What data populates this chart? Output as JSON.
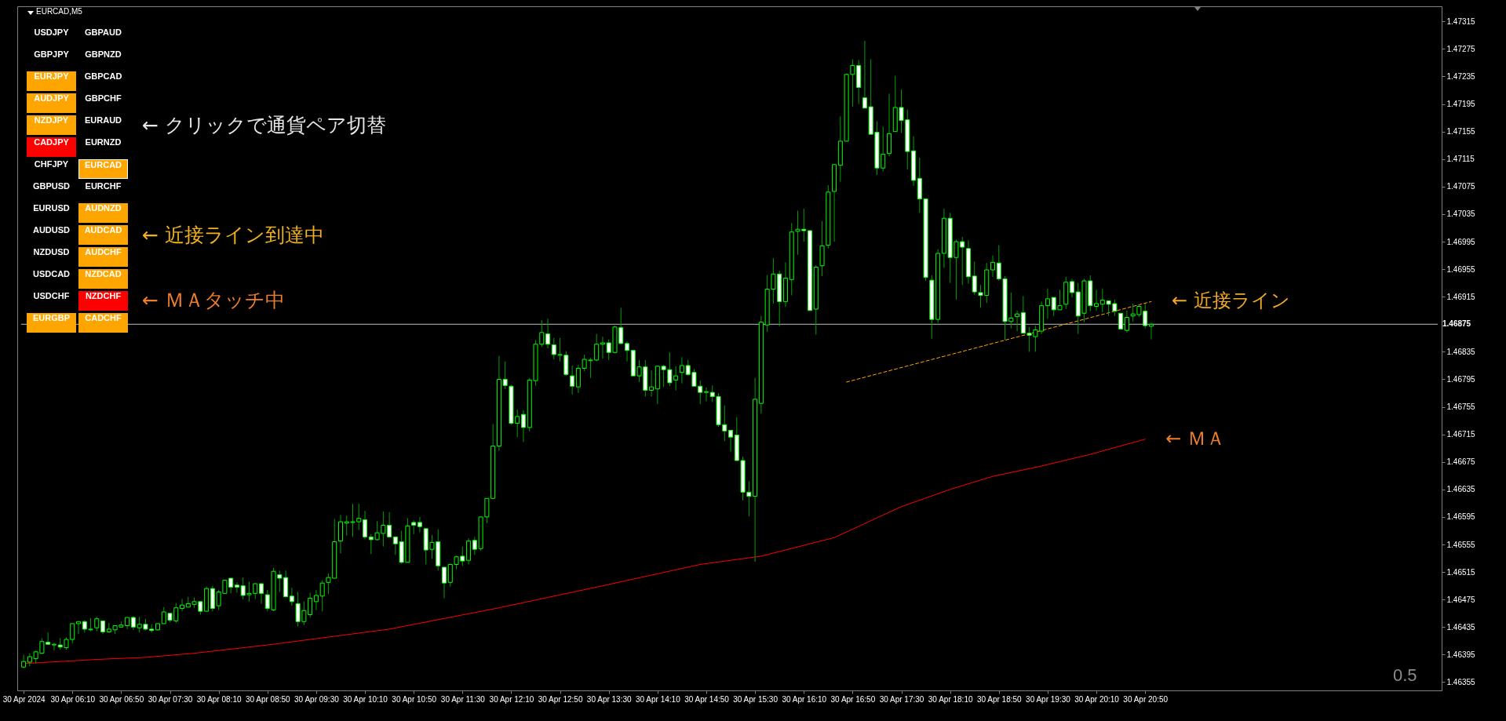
{
  "chart_data": {
    "type": "candlestick",
    "title": "EURCAD,M5",
    "x": [
      "2024-04-30T05:30",
      "2024-04-30T05:35",
      "2024-04-30T05:40",
      "2024-04-30T05:45",
      "2024-04-30T05:50",
      "2024-04-30T05:55",
      "2024-04-30T06:00",
      "2024-04-30T06:05",
      "2024-04-30T06:10",
      "2024-04-30T06:15",
      "2024-04-30T06:20",
      "2024-04-30T06:25",
      "2024-04-30T06:30",
      "2024-04-30T06:35",
      "2024-04-30T06:40",
      "2024-04-30T06:45",
      "2024-04-30T06:50",
      "2024-04-30T06:55",
      "2024-04-30T07:00",
      "2024-04-30T07:05",
      "2024-04-30T07:10",
      "2024-04-30T07:15",
      "2024-04-30T07:20",
      "2024-04-30T07:25",
      "2024-04-30T07:30",
      "2024-04-30T07:35",
      "2024-04-30T07:40",
      "2024-04-30T07:45",
      "2024-04-30T07:50",
      "2024-04-30T07:55",
      "2024-04-30T08:00",
      "2024-04-30T08:05",
      "2024-04-30T08:10",
      "2024-04-30T08:15",
      "2024-04-30T08:20",
      "2024-04-30T08:25",
      "2024-04-30T08:30",
      "2024-04-30T08:35",
      "2024-04-30T08:40",
      "2024-04-30T08:45",
      "2024-04-30T08:50",
      "2024-04-30T08:55",
      "2024-04-30T09:00",
      "2024-04-30T09:05",
      "2024-04-30T09:10",
      "2024-04-30T09:15",
      "2024-04-30T09:20",
      "2024-04-30T09:25",
      "2024-04-30T09:30",
      "2024-04-30T09:35",
      "2024-04-30T09:40",
      "2024-04-30T09:45",
      "2024-04-30T09:50",
      "2024-04-30T09:55",
      "2024-04-30T10:00",
      "2024-04-30T10:05",
      "2024-04-30T10:10",
      "2024-04-30T10:15",
      "2024-04-30T10:20",
      "2024-04-30T10:25",
      "2024-04-30T10:30",
      "2024-04-30T10:35",
      "2024-04-30T10:40",
      "2024-04-30T10:45",
      "2024-04-30T10:50",
      "2024-04-30T10:55",
      "2024-04-30T11:00",
      "2024-04-30T11:05",
      "2024-04-30T11:10",
      "2024-04-30T11:15",
      "2024-04-30T11:20",
      "2024-04-30T11:25",
      "2024-04-30T11:30",
      "2024-04-30T11:35",
      "2024-04-30T11:40",
      "2024-04-30T11:45",
      "2024-04-30T11:50",
      "2024-04-30T11:55",
      "2024-04-30T12:00",
      "2024-04-30T12:05",
      "2024-04-30T12:10",
      "2024-04-30T12:15",
      "2024-04-30T12:20",
      "2024-04-30T12:25",
      "2024-04-30T12:30",
      "2024-04-30T12:35",
      "2024-04-30T12:40",
      "2024-04-30T12:45",
      "2024-04-30T12:50",
      "2024-04-30T12:55",
      "2024-04-30T13:00",
      "2024-04-30T13:05",
      "2024-04-30T13:10",
      "2024-04-30T13:15",
      "2024-04-30T13:20",
      "2024-04-30T13:25",
      "2024-04-30T13:30",
      "2024-04-30T13:35",
      "2024-04-30T13:40",
      "2024-04-30T13:45",
      "2024-04-30T13:50",
      "2024-04-30T13:55",
      "2024-04-30T14:00",
      "2024-04-30T14:05",
      "2024-04-30T14:10",
      "2024-04-30T14:15",
      "2024-04-30T14:20",
      "2024-04-30T14:25",
      "2024-04-30T14:30",
      "2024-04-30T14:35",
      "2024-04-30T14:40",
      "2024-04-30T14:45",
      "2024-04-30T14:50",
      "2024-04-30T14:55",
      "2024-04-30T15:00",
      "2024-04-30T15:05",
      "2024-04-30T15:10",
      "2024-04-30T15:15",
      "2024-04-30T15:20",
      "2024-04-30T15:25",
      "2024-04-30T15:30",
      "2024-04-30T15:35",
      "2024-04-30T15:40",
      "2024-04-30T15:45",
      "2024-04-30T15:50",
      "2024-04-30T15:55",
      "2024-04-30T16:00",
      "2024-04-30T16:05",
      "2024-04-30T16:10",
      "2024-04-30T16:15",
      "2024-04-30T16:20",
      "2024-04-30T16:25",
      "2024-04-30T16:30",
      "2024-04-30T16:35",
      "2024-04-30T16:40",
      "2024-04-30T16:45",
      "2024-04-30T16:50",
      "2024-04-30T16:55",
      "2024-04-30T17:00",
      "2024-04-30T17:05",
      "2024-04-30T17:10",
      "2024-04-30T17:15",
      "2024-04-30T17:20",
      "2024-04-30T17:25",
      "2024-04-30T17:30",
      "2024-04-30T17:35",
      "2024-04-30T17:40",
      "2024-04-30T17:45",
      "2024-04-30T17:50",
      "2024-04-30T17:55",
      "2024-04-30T18:00",
      "2024-04-30T18:05",
      "2024-04-30T18:10",
      "2024-04-30T18:15",
      "2024-04-30T18:20",
      "2024-04-30T18:25",
      "2024-04-30T18:30",
      "2024-04-30T18:35",
      "2024-04-30T18:40",
      "2024-04-30T18:45",
      "2024-04-30T18:50",
      "2024-04-30T18:55",
      "2024-04-30T19:00",
      "2024-04-30T19:05",
      "2024-04-30T19:10",
      "2024-04-30T19:15",
      "2024-04-30T19:20",
      "2024-04-30T19:25",
      "2024-04-30T19:30",
      "2024-04-30T19:35",
      "2024-04-30T19:40",
      "2024-04-30T19:45",
      "2024-04-30T19:50",
      "2024-04-30T19:55",
      "2024-04-30T20:00",
      "2024-04-30T20:05",
      "2024-04-30T20:10",
      "2024-04-30T20:15",
      "2024-04-30T20:20",
      "2024-04-30T20:25",
      "2024-04-30T20:30",
      "2024-04-30T20:35",
      "2024-04-30T20:40",
      "2024-04-30T20:45",
      "2024-04-30T20:50",
      "2024-04-30T20:55"
    ],
    "ohlc": [
      [
        1.46377,
        1.46395,
        1.46375,
        1.46385
      ],
      [
        1.46384,
        1.46397,
        1.46378,
        1.46392
      ],
      [
        1.46389,
        1.46401,
        1.46382,
        1.46399
      ],
      [
        1.46397,
        1.46419,
        1.46396,
        1.46414
      ],
      [
        1.46413,
        1.46427,
        1.46409,
        1.4641
      ],
      [
        1.46409,
        1.46412,
        1.46401,
        1.4641
      ],
      [
        1.46409,
        1.46419,
        1.46402,
        1.46406
      ],
      [
        1.46405,
        1.4642,
        1.46402,
        1.46417
      ],
      [
        1.46417,
        1.4644,
        1.46411,
        1.4644
      ],
      [
        1.4644,
        1.46443,
        1.46425,
        1.46443
      ],
      [
        1.46443,
        1.46445,
        1.46427,
        1.46432
      ],
      [
        1.46431,
        1.46448,
        1.46429,
        1.46432
      ],
      [
        1.46434,
        1.4645,
        1.46429,
        1.46447
      ],
      [
        1.46444,
        1.46444,
        1.46425,
        1.46428
      ],
      [
        1.46428,
        1.46441,
        1.46426,
        1.46432
      ],
      [
        1.46431,
        1.46437,
        1.46425,
        1.46437
      ],
      [
        1.46435,
        1.46443,
        1.46434,
        1.46438
      ],
      [
        1.46437,
        1.46449,
        1.46432,
        1.46449
      ],
      [
        1.46449,
        1.46451,
        1.46431,
        1.46435
      ],
      [
        1.46434,
        1.4645,
        1.46427,
        1.46439
      ],
      [
        1.46439,
        1.46447,
        1.4643,
        1.46432
      ],
      [
        1.46432,
        1.46439,
        1.46427,
        1.4643
      ],
      [
        1.46431,
        1.4644,
        1.4643,
        1.4644
      ],
      [
        1.4644,
        1.46464,
        1.4644,
        1.46457
      ],
      [
        1.46455,
        1.46455,
        1.46442,
        1.46445
      ],
      [
        1.46444,
        1.4647,
        1.46441,
        1.46463
      ],
      [
        1.46462,
        1.46476,
        1.46458,
        1.46467
      ],
      [
        1.46464,
        1.46479,
        1.46464,
        1.46469
      ],
      [
        1.46468,
        1.46478,
        1.46463,
        1.46472
      ],
      [
        1.46472,
        1.46472,
        1.46453,
        1.46458
      ],
      [
        1.46458,
        1.46494,
        1.46458,
        1.46491
      ],
      [
        1.46491,
        1.46495,
        1.46458,
        1.46462
      ],
      [
        1.46466,
        1.46489,
        1.4646,
        1.46486
      ],
      [
        1.46484,
        1.46503,
        1.46484,
        1.46503
      ],
      [
        1.46506,
        1.46506,
        1.46484,
        1.46493
      ],
      [
        1.46496,
        1.465,
        1.46485,
        1.46493
      ],
      [
        1.46495,
        1.46507,
        1.46475,
        1.46481
      ],
      [
        1.46482,
        1.46501,
        1.46472,
        1.46484
      ],
      [
        1.46484,
        1.46499,
        1.46476,
        1.46498
      ],
      [
        1.46498,
        1.46499,
        1.46469,
        1.46484
      ],
      [
        1.46482,
        1.46489,
        1.46458,
        1.46462
      ],
      [
        1.4646,
        1.46521,
        1.46458,
        1.46516
      ],
      [
        1.46511,
        1.46517,
        1.46486,
        1.46506
      ],
      [
        1.46507,
        1.46517,
        1.46479,
        1.46479
      ],
      [
        1.4648,
        1.46492,
        1.46466,
        1.46472
      ],
      [
        1.46469,
        1.46486,
        1.46436,
        1.46443
      ],
      [
        1.46443,
        1.46472,
        1.46438,
        1.46459
      ],
      [
        1.46453,
        1.46485,
        1.46449,
        1.46477
      ],
      [
        1.46472,
        1.46489,
        1.4646,
        1.46481
      ],
      [
        1.4648,
        1.46503,
        1.46458,
        1.46499
      ],
      [
        1.465,
        1.46513,
        1.46483,
        1.46507
      ],
      [
        1.46506,
        1.46592,
        1.46506,
        1.46559
      ],
      [
        1.4656,
        1.46598,
        1.46542,
        1.46588
      ],
      [
        1.46586,
        1.46597,
        1.46568,
        1.46588
      ],
      [
        1.46587,
        1.46614,
        1.46566,
        1.46588
      ],
      [
        1.46588,
        1.46614,
        1.46576,
        1.46593
      ],
      [
        1.46591,
        1.46604,
        1.46563,
        1.46566
      ],
      [
        1.46566,
        1.4657,
        1.46541,
        1.46562
      ],
      [
        1.46562,
        1.46589,
        1.46561,
        1.46572
      ],
      [
        1.46571,
        1.46603,
        1.46552,
        1.46583
      ],
      [
        1.46583,
        1.46602,
        1.46565,
        1.46566
      ],
      [
        1.46566,
        1.46567,
        1.4654,
        1.46556
      ],
      [
        1.46559,
        1.46575,
        1.46527,
        1.46529
      ],
      [
        1.46529,
        1.46593,
        1.46529,
        1.46582
      ],
      [
        1.46587,
        1.4659,
        1.4657,
        1.46583
      ],
      [
        1.46587,
        1.46595,
        1.46573,
        1.46581
      ],
      [
        1.46578,
        1.46578,
        1.46526,
        1.46547
      ],
      [
        1.46548,
        1.46569,
        1.46534,
        1.46558
      ],
      [
        1.46559,
        1.46577,
        1.46517,
        1.46524
      ],
      [
        1.46522,
        1.46522,
        1.46477,
        1.46499
      ],
      [
        1.465,
        1.46527,
        1.46494,
        1.46526
      ],
      [
        1.46526,
        1.46539,
        1.46519,
        1.46537
      ],
      [
        1.46538,
        1.46552,
        1.46524,
        1.46531
      ],
      [
        1.46532,
        1.46564,
        1.46526,
        1.4656
      ],
      [
        1.46561,
        1.46566,
        1.4654,
        1.46548
      ],
      [
        1.46549,
        1.46596,
        1.46546,
        1.46595
      ],
      [
        1.46595,
        1.46622,
        1.46586,
        1.46622
      ],
      [
        1.46622,
        1.4673,
        1.46621,
        1.46698
      ],
      [
        1.46698,
        1.46829,
        1.46691,
        1.46795
      ],
      [
        1.46795,
        1.46821,
        1.46781,
        1.46786
      ],
      [
        1.46785,
        1.46787,
        1.46729,
        1.46731
      ],
      [
        1.46731,
        1.46751,
        1.46711,
        1.46741
      ],
      [
        1.46744,
        1.4675,
        1.46704,
        1.46725
      ],
      [
        1.46725,
        1.46797,
        1.46719,
        1.46794
      ],
      [
        1.46793,
        1.46852,
        1.46786,
        1.46846
      ],
      [
        1.46846,
        1.46881,
        1.46842,
        1.46863
      ],
      [
        1.46861,
        1.46883,
        1.4684,
        1.46846
      ],
      [
        1.46845,
        1.46855,
        1.46824,
        1.46831
      ],
      [
        1.4683,
        1.46855,
        1.46821,
        1.46831
      ],
      [
        1.4683,
        1.46836,
        1.468,
        1.46802
      ],
      [
        1.468,
        1.46815,
        1.46773,
        1.46785
      ],
      [
        1.46784,
        1.46816,
        1.46775,
        1.46811
      ],
      [
        1.46811,
        1.46831,
        1.46807,
        1.46824
      ],
      [
        1.46822,
        1.46826,
        1.46797,
        1.46823
      ],
      [
        1.46823,
        1.46861,
        1.46821,
        1.46846
      ],
      [
        1.46846,
        1.46857,
        1.46825,
        1.46848
      ],
      [
        1.46848,
        1.46853,
        1.46823,
        1.46834
      ],
      [
        1.46834,
        1.46873,
        1.46833,
        1.46871
      ],
      [
        1.4687,
        1.46899,
        1.46846,
        1.46847
      ],
      [
        1.46847,
        1.4685,
        1.46821,
        1.46837
      ],
      [
        1.46837,
        1.46837,
        1.468,
        1.468
      ],
      [
        1.468,
        1.46823,
        1.46791,
        1.46813
      ],
      [
        1.46813,
        1.46823,
        1.4677,
        1.46779
      ],
      [
        1.46779,
        1.46808,
        1.4677,
        1.46784
      ],
      [
        1.46781,
        1.46815,
        1.46759,
        1.46814
      ],
      [
        1.46814,
        1.46816,
        1.46784,
        1.46809
      ],
      [
        1.46809,
        1.46834,
        1.46785,
        1.4679
      ],
      [
        1.46794,
        1.46814,
        1.46779,
        1.468
      ],
      [
        1.46805,
        1.46827,
        1.46789,
        1.46815
      ],
      [
        1.46815,
        1.46823,
        1.468,
        1.46802
      ],
      [
        1.46805,
        1.4681,
        1.46785,
        1.46785
      ],
      [
        1.46785,
        1.46793,
        1.46759,
        1.46776
      ],
      [
        1.46776,
        1.46783,
        1.46763,
        1.46777
      ],
      [
        1.46776,
        1.46786,
        1.46762,
        1.4677
      ],
      [
        1.4677,
        1.46775,
        1.46726,
        1.46729
      ],
      [
        1.46729,
        1.46757,
        1.46705,
        1.4672
      ],
      [
        1.46721,
        1.46721,
        1.4669,
        1.46711
      ],
      [
        1.46714,
        1.4674,
        1.46677,
        1.46677
      ],
      [
        1.46677,
        1.46683,
        1.46619,
        1.46631
      ],
      [
        1.46631,
        1.46647,
        1.46596,
        1.46625
      ],
      [
        1.46625,
        1.46797,
        1.4653,
        1.46766
      ],
      [
        1.4676,
        1.46887,
        1.46745,
        1.46878
      ],
      [
        1.46874,
        1.46946,
        1.46864,
        1.46926
      ],
      [
        1.46926,
        1.46971,
        1.46905,
        1.46948
      ],
      [
        1.46948,
        1.46953,
        1.46872,
        1.46908
      ],
      [
        1.46908,
        1.46965,
        1.469,
        1.46942
      ],
      [
        1.4694,
        1.47022,
        1.46917,
        1.47009
      ],
      [
        1.4701,
        1.4704,
        1.46976,
        1.47013
      ],
      [
        1.47013,
        1.47043,
        1.46995,
        1.47011
      ],
      [
        1.47011,
        1.47012,
        1.46894,
        1.46895
      ],
      [
        1.46897,
        1.46961,
        1.4686,
        1.46958
      ],
      [
        1.4696,
        1.47025,
        1.46945,
        1.46989
      ],
      [
        1.4699,
        1.47077,
        1.46985,
        1.47067
      ],
      [
        1.47068,
        1.47107,
        1.46995,
        1.47107
      ],
      [
        1.47106,
        1.47177,
        1.47082,
        1.47141
      ],
      [
        1.47141,
        1.47239,
        1.47141,
        1.47238
      ],
      [
        1.47238,
        1.4726,
        1.47191,
        1.47251
      ],
      [
        1.47251,
        1.47259,
        1.47195,
        1.47219
      ],
      [
        1.47204,
        1.47287,
        1.47189,
        1.47189
      ],
      [
        1.47191,
        1.4726,
        1.47151,
        1.47151
      ],
      [
        1.47154,
        1.4717,
        1.47092,
        1.47102
      ],
      [
        1.47102,
        1.47162,
        1.47097,
        1.47122
      ],
      [
        1.47123,
        1.4721,
        1.47119,
        1.47152
      ],
      [
        1.47155,
        1.47236,
        1.47155,
        1.4719
      ],
      [
        1.4719,
        1.47216,
        1.47153,
        1.47171
      ],
      [
        1.47172,
        1.47187,
        1.471,
        1.47126
      ],
      [
        1.47127,
        1.47148,
        1.47076,
        1.47084
      ],
      [
        1.47087,
        1.47117,
        1.47037,
        1.47057
      ],
      [
        1.47057,
        1.47057,
        1.46938,
        1.46943
      ],
      [
        1.46939,
        1.46946,
        1.46854,
        1.46882
      ],
      [
        1.46882,
        1.46984,
        1.46877,
        1.46978
      ],
      [
        1.46978,
        1.47043,
        1.46957,
        1.47029
      ],
      [
        1.47029,
        1.47037,
        1.46935,
        1.46972
      ],
      [
        1.46972,
        1.46998,
        1.46911,
        1.46995
      ],
      [
        1.46995,
        1.47002,
        1.46932,
        1.46987
      ],
      [
        1.46985,
        1.46997,
        1.46934,
        1.46944
      ],
      [
        1.46945,
        1.46966,
        1.46918,
        1.46922
      ],
      [
        1.46921,
        1.46932,
        1.46899,
        1.46917
      ],
      [
        1.46917,
        1.46964,
        1.46906,
        1.46954
      ],
      [
        1.46954,
        1.46975,
        1.46944,
        1.46965
      ],
      [
        1.46964,
        1.4699,
        1.46938,
        1.46941
      ],
      [
        1.46941,
        1.46945,
        1.46852,
        1.46879
      ],
      [
        1.46879,
        1.46921,
        1.46869,
        1.46884
      ],
      [
        1.46886,
        1.46895,
        1.46865,
        1.4689
      ],
      [
        1.46892,
        1.46916,
        1.46862,
        1.46862
      ],
      [
        1.46862,
        1.46871,
        1.46835,
        1.46859
      ],
      [
        1.46857,
        1.46873,
        1.46835,
        1.46867
      ],
      [
        1.46865,
        1.46908,
        1.46861,
        1.46902
      ],
      [
        1.46902,
        1.46927,
        1.46883,
        1.46912
      ],
      [
        1.46914,
        1.46914,
        1.46887,
        1.46896
      ],
      [
        1.46896,
        1.46925,
        1.46896,
        1.46902
      ],
      [
        1.46904,
        1.46944,
        1.46897,
        1.46936
      ],
      [
        1.46937,
        1.46941,
        1.46914,
        1.46921
      ],
      [
        1.46922,
        1.46935,
        1.46861,
        1.46887
      ],
      [
        1.46891,
        1.46941,
        1.46878,
        1.46938
      ],
      [
        1.46938,
        1.46946,
        1.46894,
        1.46902
      ],
      [
        1.46901,
        1.46925,
        1.46895,
        1.46905
      ],
      [
        1.46904,
        1.46927,
        1.46892,
        1.4691
      ],
      [
        1.46909,
        1.46909,
        1.46887,
        1.46904
      ],
      [
        1.46905,
        1.46911,
        1.46887,
        1.46894
      ],
      [
        1.46891,
        1.46891,
        1.46867,
        1.46868
      ],
      [
        1.46866,
        1.46895,
        1.46863,
        1.46885
      ],
      [
        1.46887,
        1.46905,
        1.46879,
        1.4689
      ],
      [
        1.46889,
        1.46904,
        1.46886,
        1.46901
      ],
      [
        1.46894,
        1.46905,
        1.46869,
        1.46873
      ],
      [
        1.46872,
        1.46877,
        1.46853,
        1.46875
      ]
    ],
    "series": [
      {
        "type": "line",
        "color": "#ff0000",
        "x": [
          "2024-04-30T05:30",
          "2024-04-30T06:30",
          "2024-04-30T07:10",
          "2024-04-30T07:50",
          "2024-04-30T08:50",
          "2024-04-30T10:30",
          "2024-04-30T12:00",
          "2024-04-30T13:25",
          "2024-04-30T14:45",
          "2024-04-30T15:35",
          "2024-04-30T16:35",
          "2024-04-30T17:30",
          "2024-04-30T18:10",
          "2024-04-30T18:45",
          "2024-04-30T19:25",
          "2024-04-30T20:05",
          "2024-04-30T20:50"
        ],
        "values": [
          1.46382,
          1.46388,
          1.46391,
          1.46397,
          1.46409,
          1.46432,
          1.46463,
          1.46495,
          1.46526,
          1.46538,
          1.46565,
          1.4661,
          1.46635,
          1.46654,
          1.46669,
          1.46686,
          1.46708
        ]
      },
      {
        "type": "line",
        "color": "#ffa500",
        "line_style": "dashed",
        "x": [
          "2024-04-30T16:45",
          "2024-04-30T20:55"
        ],
        "values": [
          1.46791,
          1.46908
        ]
      }
    ],
    "xlim": [
      "2024-04-30T05:28",
      "2024-05-01T00:50"
    ],
    "xticks": [
      {
        "value": "2024-04-30T05:30",
        "label": "30 Apr 2024"
      },
      {
        "value": "2024-04-30T06:10",
        "label": "30 Apr 06:10"
      },
      {
        "value": "2024-04-30T06:50",
        "label": "30 Apr 06:50"
      },
      {
        "value": "2024-04-30T07:30",
        "label": "30 Apr 07:30"
      },
      {
        "value": "2024-04-30T08:10",
        "label": "30 Apr 08:10"
      },
      {
        "value": "2024-04-30T08:50",
        "label": "30 Apr 08:50"
      },
      {
        "value": "2024-04-30T09:30",
        "label": "30 Apr 09:30"
      },
      {
        "value": "2024-04-30T10:10",
        "label": "30 Apr 10:10"
      },
      {
        "value": "2024-04-30T10:50",
        "label": "30 Apr 10:50"
      },
      {
        "value": "2024-04-30T11:30",
        "label": "30 Apr 11:30"
      },
      {
        "value": "2024-04-30T12:10",
        "label": "30 Apr 12:10"
      },
      {
        "value": "2024-04-30T12:50",
        "label": "30 Apr 12:50"
      },
      {
        "value": "2024-04-30T13:30",
        "label": "30 Apr 13:30"
      },
      {
        "value": "2024-04-30T14:10",
        "label": "30 Apr 14:10"
      },
      {
        "value": "2024-04-30T14:50",
        "label": "30 Apr 14:50"
      },
      {
        "value": "2024-04-30T15:30",
        "label": "30 Apr 15:30"
      },
      {
        "value": "2024-04-30T16:10",
        "label": "30 Apr 16:10"
      },
      {
        "value": "2024-04-30T16:50",
        "label": "30 Apr 16:50"
      },
      {
        "value": "2024-04-30T17:30",
        "label": "30 Apr 17:30"
      },
      {
        "value": "2024-04-30T18:10",
        "label": "30 Apr 18:10"
      },
      {
        "value": "2024-04-30T18:50",
        "label": "30 Apr 18:50"
      },
      {
        "value": "2024-04-30T19:30",
        "label": "30 Apr 19:30"
      },
      {
        "value": "2024-04-30T20:10",
        "label": "30 Apr 20:10"
      },
      {
        "value": "2024-04-30T20:50",
        "label": "30 Apr 20:50"
      }
    ],
    "ylim": [
      1.46343,
      1.47337
    ],
    "yticks": [
      1.46355,
      1.46395,
      1.46435,
      1.46475,
      1.46515,
      1.46555,
      1.46595,
      1.46635,
      1.46675,
      1.46715,
      1.46755,
      1.46795,
      1.46835,
      1.46915,
      1.46955,
      1.46995,
      1.47035,
      1.47075,
      1.47115,
      1.47155,
      1.47195,
      1.47235,
      1.47275,
      1.47315
    ],
    "ref_lines": [
      {
        "axis": "y",
        "value": 1.46875,
        "label": "1.46875",
        "color": "#c0c0c0"
      }
    ],
    "annotations": [
      "← クリックで通貨ペア切替",
      "← 近接ライン到達中",
      "← ＭＡタッチ中",
      {
        "text": "← 近接ライン",
        "x": "2024-04-30T20:55",
        "y": 1.46908
      },
      {
        "text": "← ＭＡ",
        "x": "2024-04-30T20:50",
        "y": 1.46708
      },
      "0.5",
      "USDJPY",
      "GBPAUD",
      "GBPJPY",
      "GBPNZD",
      "EURJPY",
      "GBPCAD",
      "AUDJPY",
      "GBPCHF",
      "NZDJPY",
      "EURAUD",
      "CADJPY",
      "EURNZD",
      "CHFJPY",
      "EURCAD",
      "GBPUSD",
      "EURCHF",
      "EURUSD",
      "AUDNZD",
      "AUDUSD",
      "AUDCAD",
      "NZDUSD",
      "AUDCHF",
      "USDCAD",
      "NZDCAD",
      "USDCHF",
      "NZDCHF",
      "EURGBP",
      "CADCHF"
    ]
  }
}
